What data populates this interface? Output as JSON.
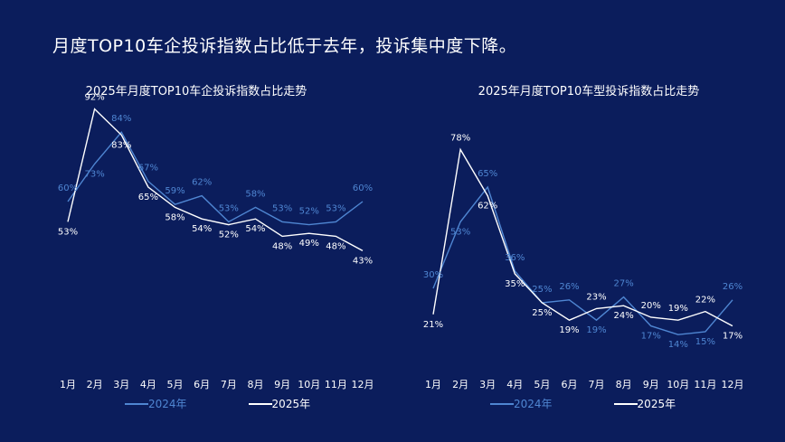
{
  "headline": "月度TOP10车企投诉指数占比低于去年，投诉集中度下降。",
  "colors": {
    "background": "#0b1d5c",
    "series_2024": "#4f86d2",
    "series_2025": "#ffffff"
  },
  "chart_data": [
    {
      "type": "line",
      "title": "2025年月度TOP10车企投诉指数占比走势",
      "categories": [
        "1月",
        "2月",
        "3月",
        "4月",
        "5月",
        "6月",
        "7月",
        "8月",
        "9月",
        "10月",
        "11月",
        "12月"
      ],
      "series": [
        {
          "name": "2024年",
          "values": [
            60,
            73,
            84,
            67,
            59,
            62,
            53,
            58,
            53,
            52,
            53,
            60
          ],
          "labels": [
            "60%",
            "73%",
            "84%",
            "67%",
            "59%",
            "62%",
            "53%",
            "58%",
            "53%",
            "52%",
            "53%",
            "60%"
          ]
        },
        {
          "name": "2025年",
          "values": [
            53,
            92,
            83,
            65,
            58,
            54,
            52,
            54,
            48,
            49,
            48,
            43
          ],
          "labels": [
            "53%",
            "92%",
            "83%",
            "65%",
            "58%",
            "54%",
            "52%",
            "54%",
            "48%",
            "49%",
            "48%",
            "43%"
          ]
        }
      ],
      "ylim": [
        0,
        100
      ],
      "grid": false,
      "legend": "bottom"
    },
    {
      "type": "line",
      "title": "2025年月度TOP10车型投诉指数占比走势",
      "categories": [
        "1月",
        "2月",
        "3月",
        "4月",
        "5月",
        "6月",
        "7月",
        "8月",
        "9月",
        "10月",
        "11月",
        "12月"
      ],
      "series": [
        {
          "name": "2024年",
          "values": [
            30,
            53,
            65,
            36,
            25,
            26,
            19,
            27,
            17,
            14,
            15,
            26
          ],
          "labels": [
            "30%",
            "53%",
            "65%",
            "36%",
            "25%",
            "26%",
            "19%",
            "27%",
            "17%",
            "14%",
            "15%",
            "26%"
          ]
        },
        {
          "name": "2025年",
          "values": [
            21,
            78,
            62,
            35,
            25,
            19,
            23,
            24,
            20,
            19,
            22,
            17
          ],
          "labels": [
            "21%",
            "78%",
            "62%",
            "35%",
            "25%",
            "19%",
            "23%",
            "24%",
            "20%",
            "19%",
            "22%",
            "17%"
          ]
        }
      ],
      "ylim": [
        0,
        100
      ],
      "grid": false,
      "legend": "bottom"
    }
  ]
}
